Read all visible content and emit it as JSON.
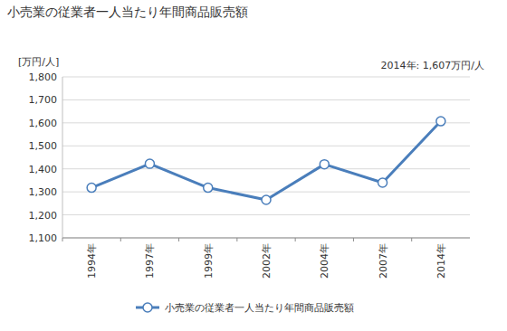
{
  "chart_data": {
    "type": "line",
    "title": "小売業の従業者一人当たり年間商品販売額",
    "y_label": "[万円/人]",
    "annotations": [
      "2014年: 1,607万円/人"
    ],
    "categories": [
      "1994年",
      "1997年",
      "1999年",
      "2002年",
      "2004年",
      "2007年",
      "2014年"
    ],
    "series": [
      {
        "name": "小売業の従業者一人当たり年間商品販売額",
        "color": "#4a7ebb",
        "marker": "circle",
        "values": [
          1318,
          1422,
          1318,
          1265,
          1420,
          1340,
          1607
        ]
      }
    ],
    "ylim": [
      1100,
      1800
    ],
    "yticks": [
      {
        "value": 1100,
        "label": "1,100"
      },
      {
        "value": 1200,
        "label": "1,200"
      },
      {
        "value": 1300,
        "label": "1,300"
      },
      {
        "value": 1400,
        "label": "1,400"
      },
      {
        "value": 1500,
        "label": "1,500"
      },
      {
        "value": 1600,
        "label": "1,600"
      },
      {
        "value": 1700,
        "label": "1,700"
      },
      {
        "value": 1800,
        "label": "1,800"
      }
    ],
    "grid": true,
    "legend": "bottom"
  }
}
